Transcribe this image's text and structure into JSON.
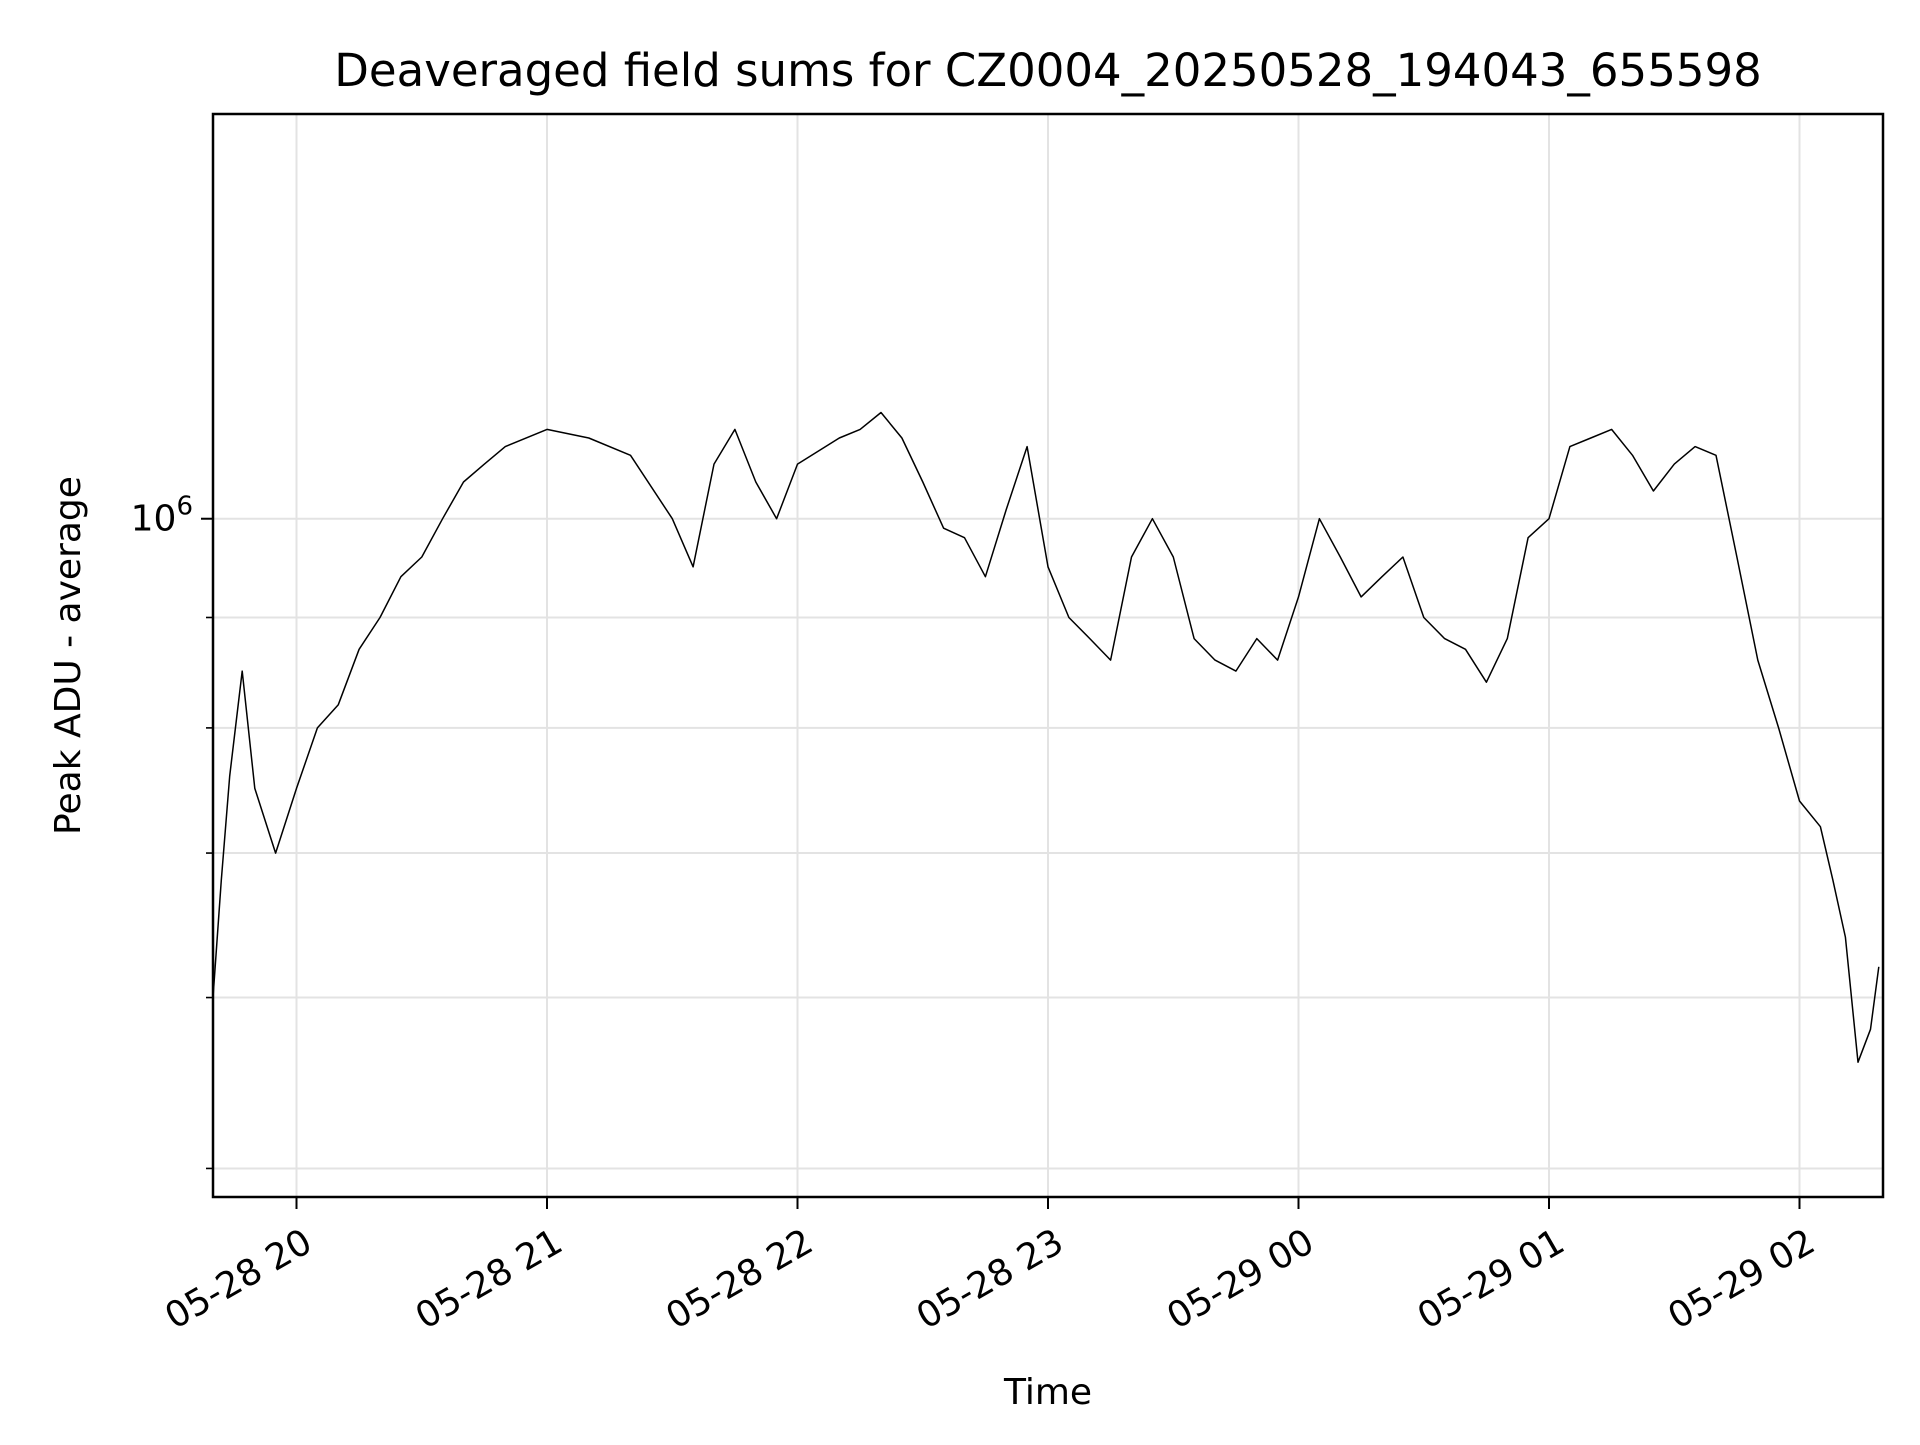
{
  "chart_data": {
    "type": "line",
    "title": "Deaveraged field sums for CZ0004_20250528_194043_655598",
    "xlabel": "Time",
    "ylabel": "Peak ADU - average",
    "y_scale": "log",
    "ylim": [
      485000,
      1540000
    ],
    "xlim": [
      "2025-05-28 19:40",
      "2025-05-29 02:20"
    ],
    "grid": true,
    "line_color": "#000000",
    "x_ticks": [
      {
        "value": "2025-05-28 20:00",
        "label": "05-28 20"
      },
      {
        "value": "2025-05-28 21:00",
        "label": "05-28 21"
      },
      {
        "value": "2025-05-28 22:00",
        "label": "05-28 22"
      },
      {
        "value": "2025-05-28 23:00",
        "label": "05-28 23"
      },
      {
        "value": "2025-05-29 00:00",
        "label": "05-29 00"
      },
      {
        "value": "2025-05-29 01:00",
        "label": "05-29 01"
      },
      {
        "value": "2025-05-29 02:00",
        "label": "05-29 02"
      }
    ],
    "y_major_ticks": [
      {
        "value": 1000000,
        "base": "10",
        "exp": "6"
      }
    ],
    "y_minor_ticks": [
      500000,
      600000,
      700000,
      800000,
      900000,
      2000000
    ],
    "series": [
      {
        "x": [
          "2025-05-28 19:40",
          "2025-05-28 19:42",
          "2025-05-28 19:44",
          "2025-05-28 19:47",
          "2025-05-28 19:50",
          "2025-05-28 19:55",
          "2025-05-28 20:00",
          "2025-05-28 20:05",
          "2025-05-28 20:10",
          "2025-05-28 20:15",
          "2025-05-28 20:20",
          "2025-05-28 20:25",
          "2025-05-28 20:30",
          "2025-05-28 20:35",
          "2025-05-28 20:40",
          "2025-05-28 20:45",
          "2025-05-28 20:50",
          "2025-05-28 21:00",
          "2025-05-28 21:10",
          "2025-05-28 21:20",
          "2025-05-28 21:30",
          "2025-05-28 21:35",
          "2025-05-28 21:40",
          "2025-05-28 21:45",
          "2025-05-28 21:50",
          "2025-05-28 21:55",
          "2025-05-28 22:00",
          "2025-05-28 22:10",
          "2025-05-28 22:15",
          "2025-05-28 22:20",
          "2025-05-28 22:25",
          "2025-05-28 22:30",
          "2025-05-28 22:35",
          "2025-05-28 22:40",
          "2025-05-28 22:45",
          "2025-05-28 22:50",
          "2025-05-28 22:55",
          "2025-05-28 23:00",
          "2025-05-28 23:05",
          "2025-05-28 23:10",
          "2025-05-28 23:15",
          "2025-05-28 23:20",
          "2025-05-28 23:25",
          "2025-05-28 23:30",
          "2025-05-28 23:35",
          "2025-05-28 23:40",
          "2025-05-28 23:45",
          "2025-05-28 23:50",
          "2025-05-28 23:55",
          "2025-05-29 00:00",
          "2025-05-29 00:05",
          "2025-05-29 00:10",
          "2025-05-29 00:15",
          "2025-05-29 00:20",
          "2025-05-29 00:25",
          "2025-05-29 00:30",
          "2025-05-29 00:35",
          "2025-05-29 00:40",
          "2025-05-29 00:45",
          "2025-05-29 00:50",
          "2025-05-29 00:55",
          "2025-05-29 01:00",
          "2025-05-29 01:05",
          "2025-05-29 01:10",
          "2025-05-29 01:15",
          "2025-05-29 01:20",
          "2025-05-29 01:25",
          "2025-05-29 01:30",
          "2025-05-29 01:35",
          "2025-05-29 01:40",
          "2025-05-29 01:45",
          "2025-05-29 01:50",
          "2025-05-29 01:55",
          "2025-05-29 02:00",
          "2025-05-29 02:05",
          "2025-05-29 02:08",
          "2025-05-29 02:11",
          "2025-05-29 02:14",
          "2025-05-29 02:17",
          "2025-05-29 02:19"
        ],
        "y": [
          600000,
          680000,
          760000,
          850000,
          750000,
          700000,
          750000,
          800000,
          820000,
          870000,
          900000,
          940000,
          960000,
          1000000,
          1040000,
          1060000,
          1080000,
          1100000,
          1090000,
          1070000,
          1000000,
          950000,
          1060000,
          1100000,
          1040000,
          1000000,
          1060000,
          1090000,
          1100000,
          1120000,
          1090000,
          1040000,
          990000,
          980000,
          940000,
          1010000,
          1080000,
          950000,
          900000,
          880000,
          860000,
          960000,
          1000000,
          960000,
          880000,
          860000,
          850000,
          880000,
          860000,
          920000,
          1000000,
          960000,
          920000,
          940000,
          960000,
          900000,
          880000,
          870000,
          840000,
          880000,
          980000,
          1000000,
          1080000,
          1090000,
          1100000,
          1070000,
          1030000,
          1060000,
          1080000,
          1070000,
          960000,
          860000,
          800000,
          740000,
          720000,
          680000,
          640000,
          560000,
          580000,
          620000
        ]
      }
    ]
  }
}
